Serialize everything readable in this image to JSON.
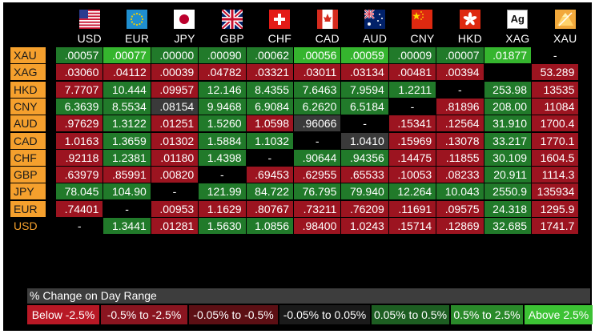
{
  "columns": [
    "USD",
    "EUR",
    "JPY",
    "GBP",
    "CHF",
    "CAD",
    "AUD",
    "CNY",
    "HKD",
    "XAG",
    "XAU"
  ],
  "column_flags": [
    "us-flag-icon",
    "eu-flag-icon",
    "jp-flag-icon",
    "gb-flag-icon",
    "ch-flag-icon",
    "ca-flag-icon",
    "au-flag-icon",
    "cn-flag-icon",
    "hk-flag-icon",
    "silver-icon",
    "gold-icon"
  ],
  "silver_glyph": "Ag",
  "rows": [
    {
      "label": "XAU",
      "cells": [
        [
          ".00057",
          "grn"
        ],
        [
          ".00077",
          "bgrn"
        ],
        [
          ".00000",
          "grn"
        ],
        [
          ".00090",
          "grn"
        ],
        [
          ".00062",
          "grn"
        ],
        [
          ".00056",
          "bgrn"
        ],
        [
          ".00059",
          "bgrn"
        ],
        [
          ".00009",
          "grn"
        ],
        [
          ".00007",
          "grn"
        ],
        [
          ".01877",
          "bgrn"
        ],
        [
          "-",
          "blk"
        ]
      ]
    },
    {
      "label": "XAG",
      "cells": [
        [
          ".03060",
          "red"
        ],
        [
          ".04112",
          "red"
        ],
        [
          ".00039",
          "red"
        ],
        [
          ".04782",
          "red"
        ],
        [
          ".03321",
          "red"
        ],
        [
          ".03011",
          "red"
        ],
        [
          ".03134",
          "red"
        ],
        [
          ".00481",
          "red"
        ],
        [
          ".00394",
          "red"
        ],
        [
          "",
          "blk"
        ],
        [
          "53.289",
          "red"
        ]
      ]
    },
    {
      "label": "HKD",
      "cells": [
        [
          "7.7707",
          "red"
        ],
        [
          "10.444",
          "grn"
        ],
        [
          ".09957",
          "red"
        ],
        [
          "12.146",
          "grn"
        ],
        [
          "8.4355",
          "grn"
        ],
        [
          "7.6463",
          "grn"
        ],
        [
          "7.9594",
          "grn"
        ],
        [
          "1.2211",
          "grn"
        ],
        [
          "-",
          "blk"
        ],
        [
          "253.98",
          "grn"
        ],
        [
          "13535",
          "red"
        ]
      ]
    },
    {
      "label": "CNY",
      "cells": [
        [
          "6.3639",
          "grn"
        ],
        [
          "8.5534",
          "grn"
        ],
        [
          ".08154",
          "gry"
        ],
        [
          "9.9468",
          "grn"
        ],
        [
          "6.9084",
          "grn"
        ],
        [
          "6.2620",
          "grn"
        ],
        [
          "6.5184",
          "grn"
        ],
        [
          "-",
          "blk"
        ],
        [
          ".81896",
          "red"
        ],
        [
          "208.00",
          "grn"
        ],
        [
          "11084",
          "red"
        ]
      ]
    },
    {
      "label": "AUD",
      "cells": [
        [
          ".97629",
          "red"
        ],
        [
          "1.3122",
          "grn"
        ],
        [
          ".01251",
          "red"
        ],
        [
          "1.5260",
          "grn"
        ],
        [
          "1.0598",
          "red"
        ],
        [
          ".96066",
          "gry"
        ],
        [
          "-",
          "blk"
        ],
        [
          ".15341",
          "red"
        ],
        [
          ".12564",
          "red"
        ],
        [
          "31.910",
          "grn"
        ],
        [
          "1700.4",
          "red"
        ]
      ]
    },
    {
      "label": "CAD",
      "cells": [
        [
          "1.0163",
          "red"
        ],
        [
          "1.3659",
          "grn"
        ],
        [
          ".01302",
          "red"
        ],
        [
          "1.5884",
          "grn"
        ],
        [
          "1.1032",
          "grn"
        ],
        [
          "-",
          "blk"
        ],
        [
          "1.0410",
          "gry"
        ],
        [
          ".15969",
          "red"
        ],
        [
          ".13078",
          "red"
        ],
        [
          "33.217",
          "grn"
        ],
        [
          "1770.1",
          "red"
        ]
      ]
    },
    {
      "label": "CHF",
      "cells": [
        [
          ".92118",
          "red"
        ],
        [
          "1.2381",
          "grn"
        ],
        [
          ".01180",
          "red"
        ],
        [
          "1.4398",
          "grn"
        ],
        [
          "-",
          "blk"
        ],
        [
          ".90644",
          "grn"
        ],
        [
          ".94356",
          "grn"
        ],
        [
          ".14475",
          "red"
        ],
        [
          ".11855",
          "red"
        ],
        [
          "30.109",
          "grn"
        ],
        [
          "1604.5",
          "red"
        ]
      ]
    },
    {
      "label": "GBP",
      "cells": [
        [
          ".63979",
          "red"
        ],
        [
          ".85991",
          "red"
        ],
        [
          ".00820",
          "red"
        ],
        [
          "-",
          "blk"
        ],
        [
          ".69453",
          "red"
        ],
        [
          ".62955",
          "red"
        ],
        [
          ".65533",
          "red"
        ],
        [
          ".10053",
          "red"
        ],
        [
          ".08233",
          "red"
        ],
        [
          "20.911",
          "grn"
        ],
        [
          "1114.3",
          "red"
        ]
      ]
    },
    {
      "label": "JPY",
      "cells": [
        [
          "78.045",
          "grn"
        ],
        [
          "104.90",
          "grn"
        ],
        [
          "-",
          "blk"
        ],
        [
          "121.99",
          "grn"
        ],
        [
          "84.722",
          "grn"
        ],
        [
          "76.795",
          "grn"
        ],
        [
          "79.940",
          "grn"
        ],
        [
          "12.264",
          "grn"
        ],
        [
          "10.043",
          "grn"
        ],
        [
          "2550.9",
          "grn"
        ],
        [
          "135934",
          "red"
        ]
      ]
    },
    {
      "label": "EUR",
      "cells": [
        [
          ".74401",
          "red"
        ],
        [
          "-",
          "blk"
        ],
        [
          ".00953",
          "red"
        ],
        [
          "1.1629",
          "red"
        ],
        [
          ".80767",
          "red"
        ],
        [
          ".73211",
          "red"
        ],
        [
          ".76209",
          "red"
        ],
        [
          ".11691",
          "red"
        ],
        [
          ".09575",
          "red"
        ],
        [
          "24.318",
          "grn"
        ],
        [
          "1295.9",
          "red"
        ]
      ]
    },
    {
      "label": "USD",
      "plain": true,
      "cells": [
        [
          "-",
          "blk"
        ],
        [
          "1.3441",
          "grn"
        ],
        [
          ".01281",
          "red"
        ],
        [
          "1.5630",
          "grn"
        ],
        [
          "1.0856",
          "grn"
        ],
        [
          ".98400",
          "red"
        ],
        [
          "1.0243",
          "red"
        ],
        [
          ".15714",
          "red"
        ],
        [
          ".12869",
          "red"
        ],
        [
          "32.685",
          "grn"
        ],
        [
          "1741.7",
          "red"
        ]
      ]
    }
  ],
  "legend": {
    "title": "% Change on Day Range",
    "items": [
      {
        "label": "Below -2.5%",
        "color": "#b81825"
      },
      {
        "label": "-0.5% to -2.5%",
        "color": "#8a1520"
      },
      {
        "label": "-0.05% to -0.5%",
        "color": "#5c0f14"
      },
      {
        "label": "-0.05% to 0.05%",
        "color": "#1a1a1a"
      },
      {
        "label": "0.05% to 0.5%",
        "color": "#1d5e22"
      },
      {
        "label": "0.5% to 2.5%",
        "color": "#2a8a2a"
      },
      {
        "label": "Above 2.5%",
        "color": "#3cc234"
      }
    ]
  }
}
